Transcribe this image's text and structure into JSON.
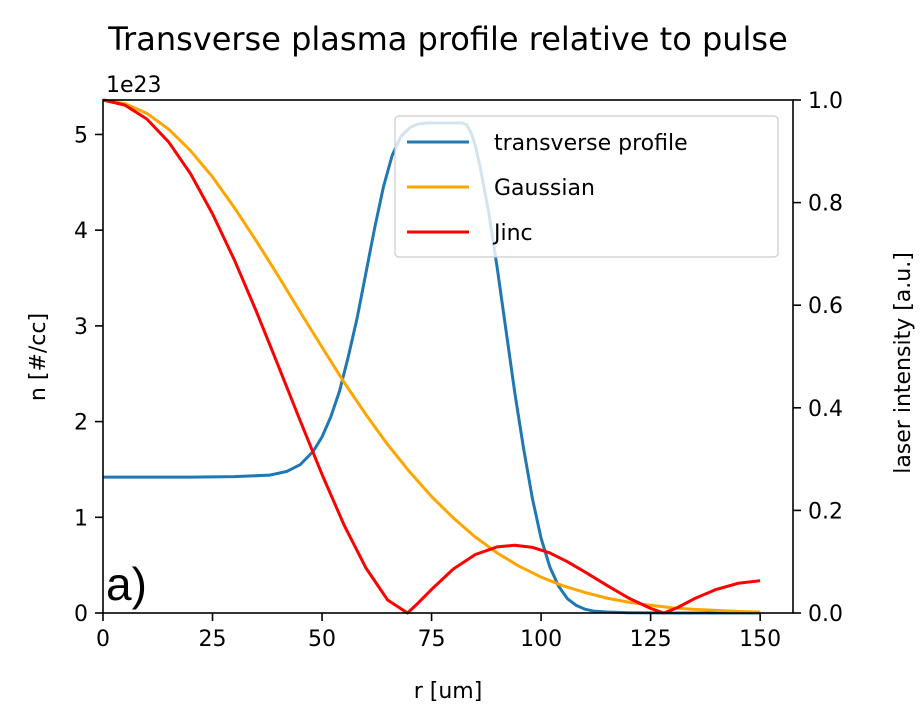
{
  "chart_data": {
    "type": "line",
    "title": "Transverse plasma profile relative to pulse",
    "xlabel": "r [um]",
    "ylabel": "n [#/cc]",
    "y2label": "laser intensity [a.u.]",
    "y_offset_text": "1e23",
    "panel_label": "a)",
    "xlim": [
      0,
      157.5
    ],
    "ylim": [
      0,
      5.36
    ],
    "y2lim": [
      0,
      1.0
    ],
    "xticks": [
      0,
      25,
      50,
      75,
      100,
      125,
      150
    ],
    "xtick_labels": [
      "0",
      "25",
      "50",
      "75",
      "100",
      "125",
      "150"
    ],
    "yticks": [
      0,
      1,
      2,
      3,
      4,
      5
    ],
    "ytick_labels": [
      "0",
      "1",
      "2",
      "3",
      "4",
      "5"
    ],
    "y2ticks": [
      0,
      0.2,
      0.4,
      0.6,
      0.8,
      1.0
    ],
    "y2tick_labels": [
      "0.0",
      "0.2",
      "0.4",
      "0.6",
      "0.8",
      "1.0"
    ],
    "legend_position": "top-right",
    "series": [
      {
        "name": "transverse profile",
        "axis": "left",
        "color": "#1f77b4",
        "x": [
          0,
          20,
          30,
          38,
          42,
          45,
          48,
          50,
          52,
          54,
          56,
          58,
          60,
          62,
          64,
          66,
          68,
          70,
          72,
          74,
          76,
          78,
          80,
          82,
          83,
          84,
          85,
          86,
          88,
          90,
          92,
          94,
          96,
          98,
          100,
          102,
          104,
          106,
          108,
          110,
          112,
          115,
          120,
          130,
          140,
          150
        ],
        "y": [
          1.42,
          1.42,
          1.425,
          1.44,
          1.48,
          1.55,
          1.69,
          1.84,
          2.05,
          2.32,
          2.68,
          3.08,
          3.55,
          4.02,
          4.45,
          4.78,
          4.98,
          5.07,
          5.11,
          5.12,
          5.12,
          5.12,
          5.12,
          5.12,
          5.1,
          5.02,
          4.88,
          4.68,
          4.2,
          3.6,
          2.95,
          2.3,
          1.72,
          1.2,
          0.78,
          0.48,
          0.28,
          0.15,
          0.08,
          0.04,
          0.02,
          0.01,
          0.003,
          0.0,
          0.0,
          0.0
        ]
      },
      {
        "name": "Gaussian",
        "axis": "right",
        "color": "#ffa500",
        "x": [
          0,
          5,
          10,
          15,
          20,
          25,
          30,
          35,
          40,
          45,
          50,
          55,
          60,
          65,
          70,
          75,
          80,
          85,
          90,
          95,
          100,
          105,
          110,
          115,
          120,
          125,
          130,
          135,
          140,
          145,
          150
        ],
        "y": [
          1.0,
          0.993,
          0.974,
          0.943,
          0.901,
          0.85,
          0.79,
          0.725,
          0.657,
          0.587,
          0.518,
          0.45,
          0.387,
          0.328,
          0.275,
          0.227,
          0.185,
          0.148,
          0.117,
          0.091,
          0.07,
          0.053,
          0.04,
          0.029,
          0.021,
          0.015,
          0.01,
          0.007,
          0.005,
          0.003,
          0.002
        ]
      },
      {
        "name": "Jinc",
        "axis": "right",
        "color": "#ff0000",
        "x": [
          0,
          5,
          10,
          15,
          20,
          25,
          30,
          35,
          40,
          45,
          50,
          55,
          60,
          65,
          69.5,
          72,
          75,
          80,
          85,
          90,
          94,
          98,
          102,
          106,
          110,
          115,
          120,
          125,
          128,
          131,
          135,
          140,
          145,
          150
        ],
        "y": [
          1.0,
          0.99,
          0.963,
          0.918,
          0.856,
          0.778,
          0.688,
          0.588,
          0.482,
          0.375,
          0.27,
          0.172,
          0.088,
          0.025,
          0.0,
          0.02,
          0.046,
          0.086,
          0.114,
          0.129,
          0.132,
          0.128,
          0.117,
          0.1,
          0.08,
          0.054,
          0.029,
          0.009,
          0.0,
          0.01,
          0.028,
          0.046,
          0.058,
          0.063
        ]
      }
    ]
  }
}
